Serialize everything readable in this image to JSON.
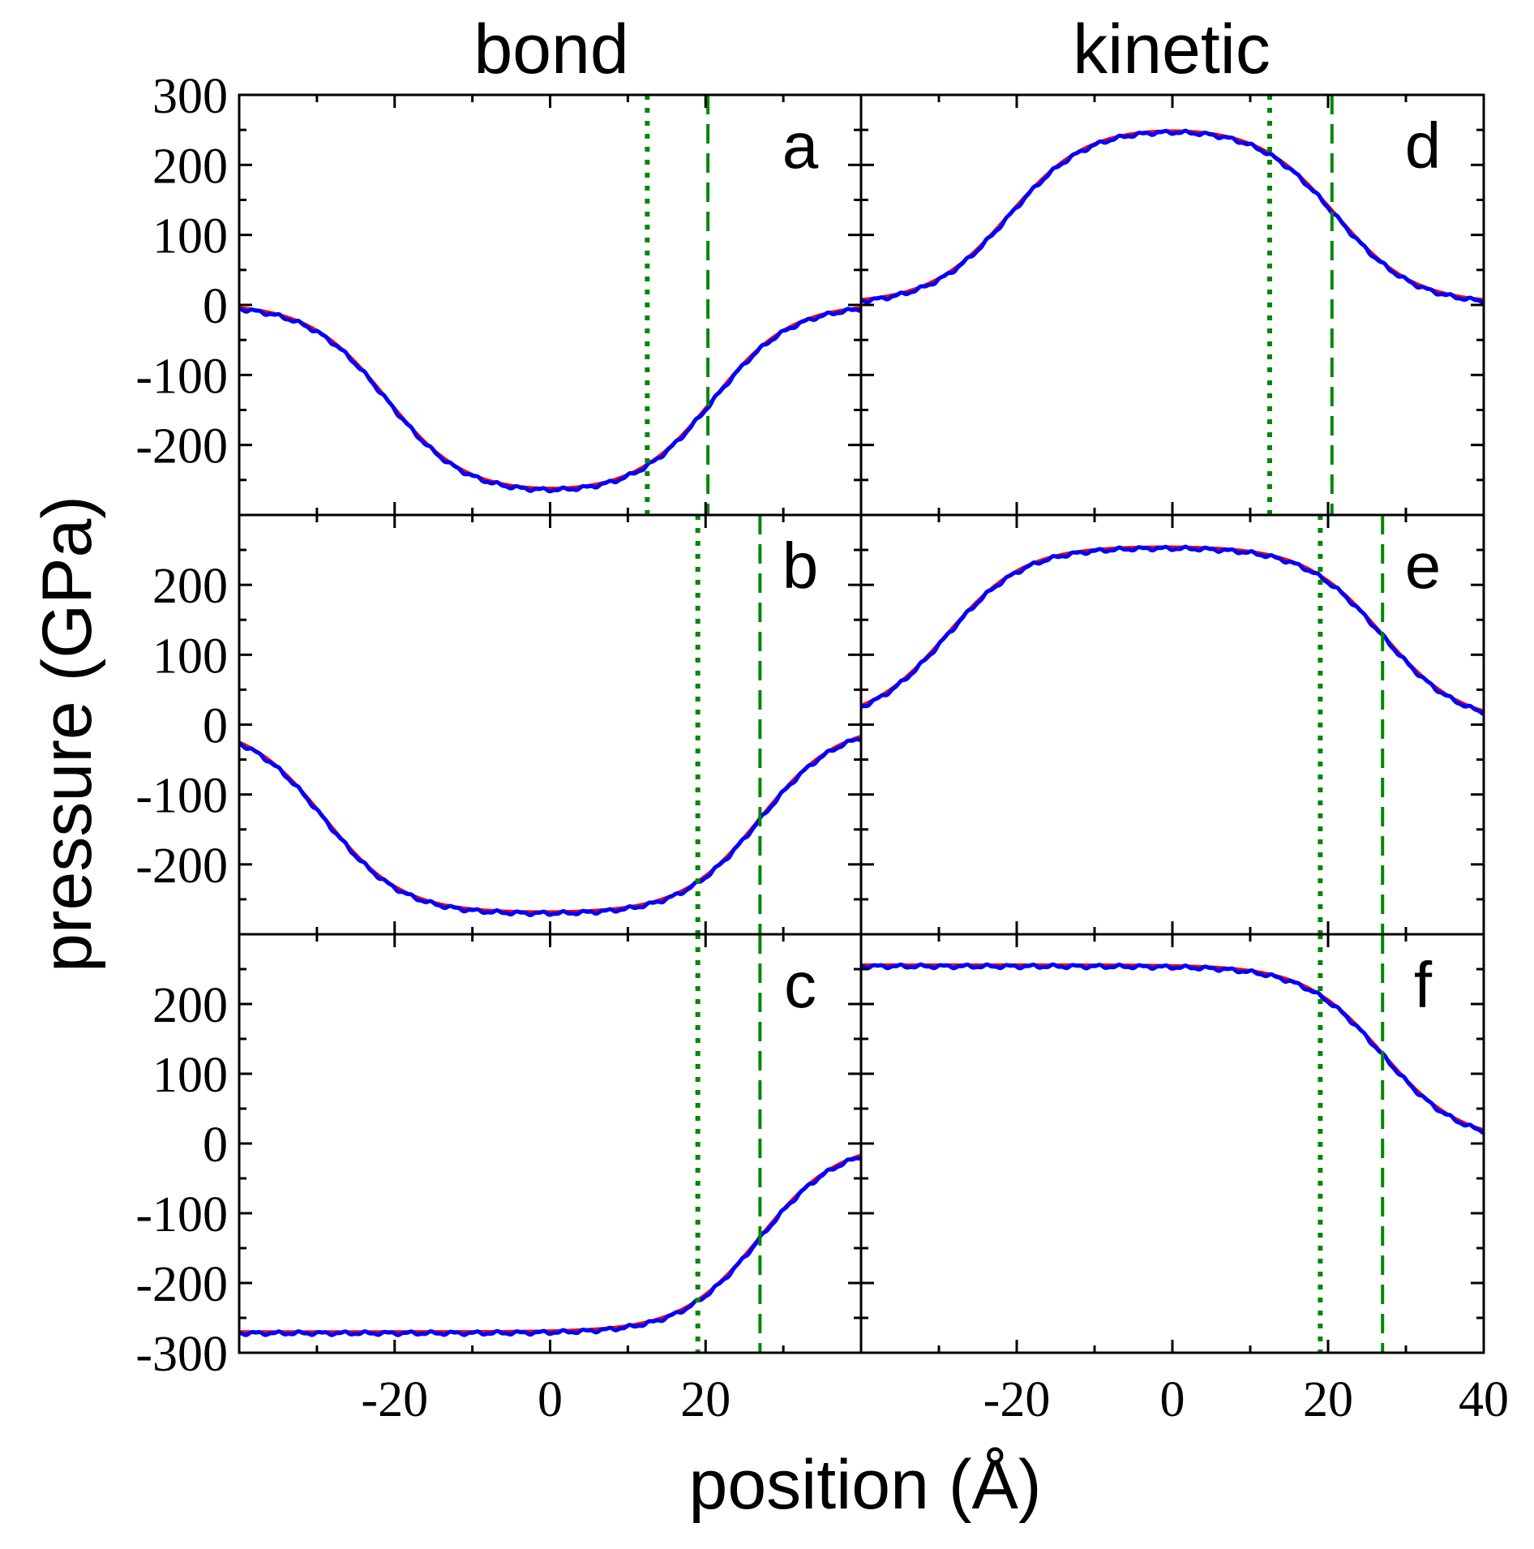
{
  "chart_data": {
    "type": "line",
    "ylabel": "pressure (GPa)",
    "xlabel": "position (Å)",
    "column_titles": [
      "bond",
      "kinetic"
    ],
    "xlim": [
      -40,
      40
    ],
    "x_ticks": [
      -20,
      0,
      20,
      40
    ],
    "x_tick_labels": [
      "-20",
      "0",
      "20",
      "40"
    ],
    "y_ticks_full": [
      -300,
      -200,
      -100,
      0,
      100,
      200,
      300
    ],
    "y_ticks_top": [
      "300",
      "200",
      "100",
      "0",
      "-100",
      "-200"
    ],
    "y_ticks_middle": [
      "200",
      "100",
      "0",
      "-100",
      "-200"
    ],
    "y_ticks_bottom": [
      "200",
      "100",
      "0",
      "-100",
      "-200",
      "-300"
    ],
    "series_colors": {
      "data": "#0000ff",
      "fit": "#ff0000",
      "markers": "#008800"
    },
    "panels": [
      {
        "label": "a",
        "column": "bond",
        "row": 0,
        "ylim": [
          -300,
          300
        ],
        "dotted_x": 12.5,
        "dashed_x": 20.3,
        "profile": {
          "type": "negative-well",
          "depth": -272,
          "left_center": -21,
          "right_center": 21,
          "width": 5
        }
      },
      {
        "label": "b",
        "column": "bond",
        "row": 1,
        "ylim": [
          -300,
          300
        ],
        "dotted_x": 19,
        "dashed_x": 27,
        "profile": {
          "type": "negative-well",
          "depth": -272,
          "left_center": -29,
          "right_center": 27,
          "width": 5
        }
      },
      {
        "label": "c",
        "column": "bond",
        "row": 2,
        "ylim": [
          -300,
          300
        ],
        "dotted_x": 19,
        "dashed_x": 27,
        "profile": {
          "type": "negative-step",
          "depth": -272,
          "right_center": 27,
          "width": 5
        }
      },
      {
        "label": "d",
        "column": "kinetic",
        "row": 0,
        "ylim": [
          -300,
          300
        ],
        "dotted_x": 12.5,
        "dashed_x": 20.5,
        "profile": {
          "type": "positive-plateau",
          "height": 254,
          "left_center": -21,
          "right_center": 21,
          "width": 5
        }
      },
      {
        "label": "e",
        "column": "kinetic",
        "row": 1,
        "ylim": [
          -300,
          300
        ],
        "dotted_x": 19,
        "dashed_x": 27,
        "profile": {
          "type": "positive-plateau",
          "height": 254,
          "left_center": -29,
          "right_center": 27,
          "width": 5
        }
      },
      {
        "label": "f",
        "column": "kinetic",
        "row": 2,
        "ylim": [
          -300,
          300
        ],
        "dotted_x": 19,
        "dashed_x": 27,
        "profile": {
          "type": "positive-step",
          "height": 254,
          "right_center": 27,
          "width": 5
        }
      }
    ]
  }
}
